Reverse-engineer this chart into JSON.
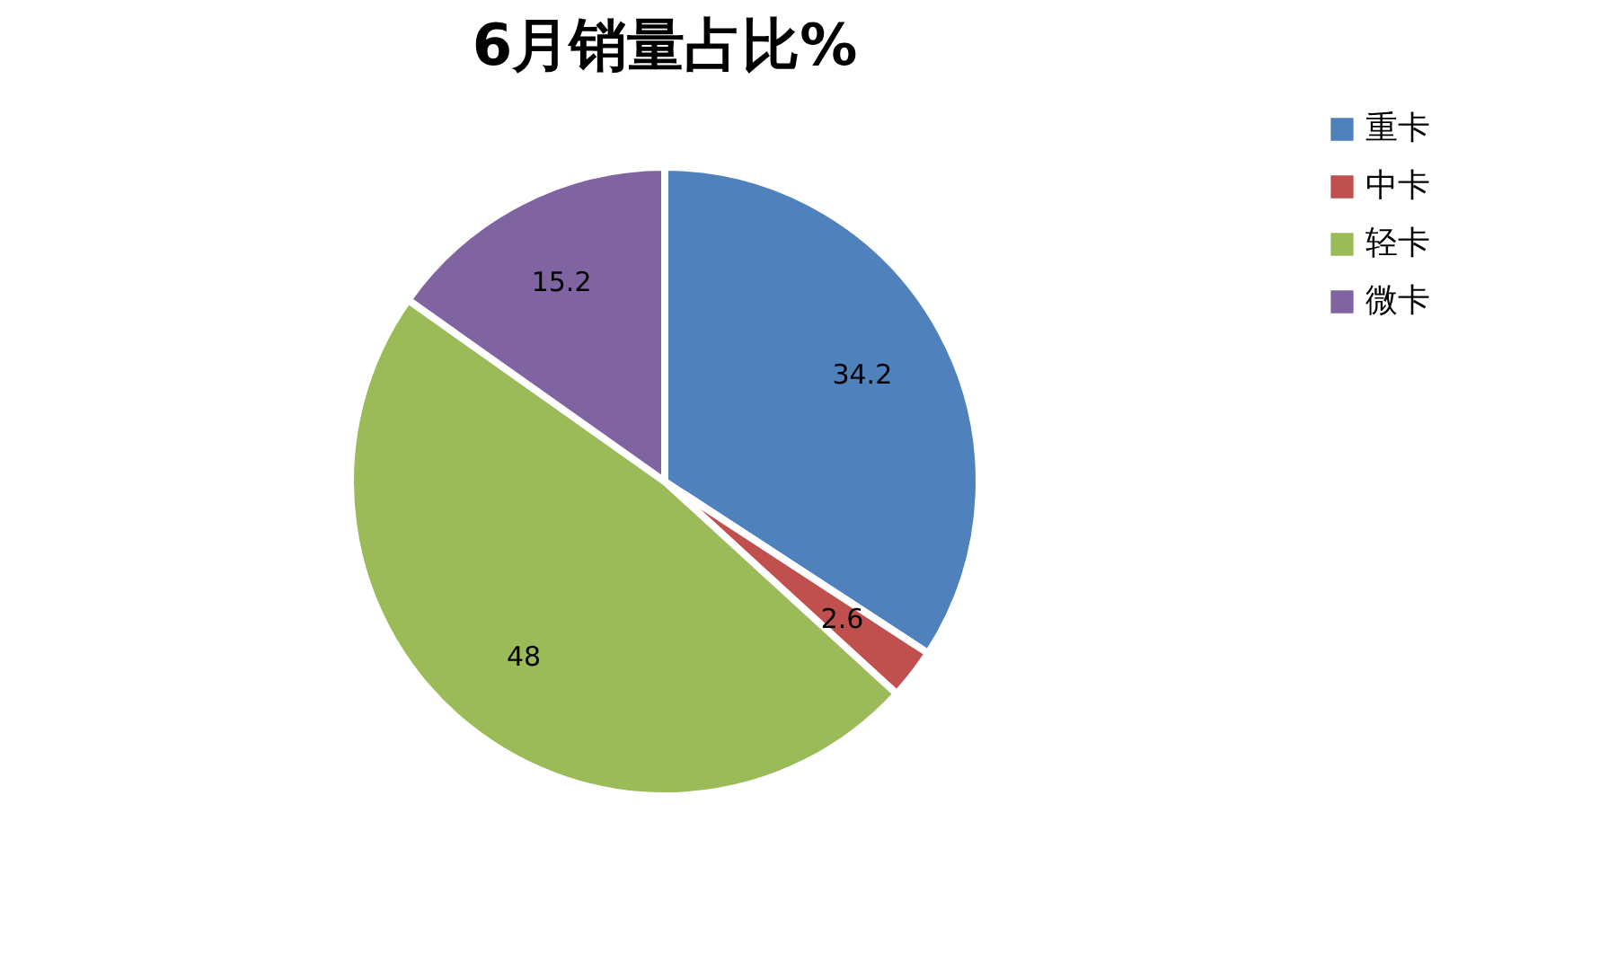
{
  "chart_data": {
    "type": "pie",
    "title": "6月销量占比%",
    "categories": [
      "重卡",
      "中卡",
      "轻卡",
      "微卡"
    ],
    "values": [
      34.2,
      2.6,
      48,
      15.2
    ],
    "colors": [
      "#4f81bd",
      "#c0504d",
      "#9bbb59",
      "#8064a2"
    ],
    "data_labels": true,
    "legend": "right"
  }
}
